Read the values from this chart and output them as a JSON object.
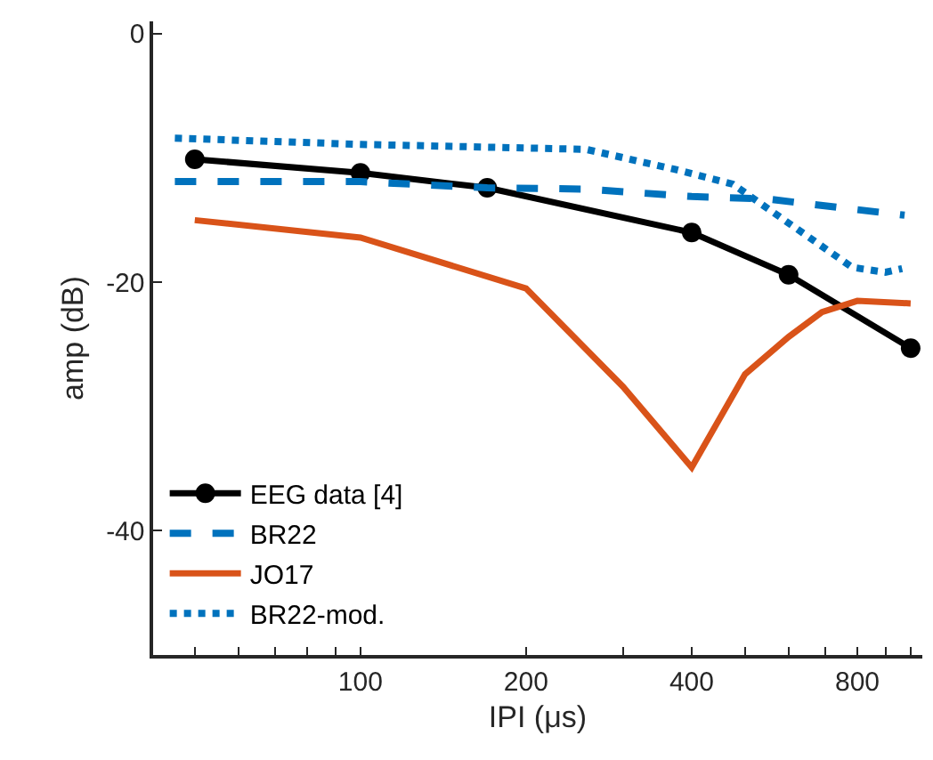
{
  "chart_data": {
    "type": "line",
    "xlabel": "IPI (μs)",
    "ylabel": "amp (dB)",
    "log": "x",
    "xlim": [
      42,
      1050
    ],
    "xticks": [
      {
        "value": 50,
        "label": null
      },
      {
        "value": 60,
        "label": null
      },
      {
        "value": 70,
        "label": null
      },
      {
        "value": 80,
        "label": null
      },
      {
        "value": 90,
        "label": null
      },
      100,
      200,
      {
        "value": 300,
        "label": null
      },
      400,
      {
        "value": 500,
        "label": null
      },
      {
        "value": 600,
        "label": null
      },
      {
        "value": 700,
        "label": null
      },
      800,
      {
        "value": 900,
        "label": null
      },
      {
        "value": 1000,
        "label": null
      }
    ],
    "ylim": [
      -50,
      1
    ],
    "yticks": [
      -40,
      -20,
      0
    ],
    "legend": "bottom left",
    "series": [
      {
        "name": "EEG data [4]",
        "color": "#000000",
        "marker": "circle",
        "line_style": "solid",
        "x": [
          50,
          100,
          170,
          400,
          600,
          1000
        ],
        "values": [
          -10.1,
          -11.2,
          -12.4,
          -16.0,
          -19.4,
          -25.3
        ]
      },
      {
        "name": "BR22",
        "color": "#0072bd",
        "marker": "none",
        "line_style": "dashed",
        "x": [
          46,
          100,
          170,
          257,
          400,
          550,
          780,
          975
        ],
        "values": [
          -11.9,
          -11.9,
          -12.4,
          -12.5,
          -13.1,
          -13.3,
          -14.1,
          -14.6
        ]
      },
      {
        "name": "JO17",
        "color": "#d95319",
        "marker": "none",
        "line_style": "solid",
        "x": [
          50,
          100,
          200,
          300,
          400,
          500,
          600,
          690,
          800,
          1000
        ],
        "values": [
          -15.0,
          -16.4,
          -20.5,
          -28.4,
          -34.9,
          -27.4,
          -24.4,
          -22.4,
          -21.5,
          -21.7
        ]
      },
      {
        "name": "BR22-mod.",
        "color": "#0072bd",
        "marker": "none",
        "line_style": "dotted",
        "x": [
          46,
          100,
          257,
          372,
          475,
          612,
          783,
          900,
          965
        ],
        "values": [
          -8.4,
          -8.9,
          -9.3,
          -10.9,
          -12.1,
          -15.5,
          -18.8,
          -19.2,
          -18.9
        ]
      }
    ]
  }
}
